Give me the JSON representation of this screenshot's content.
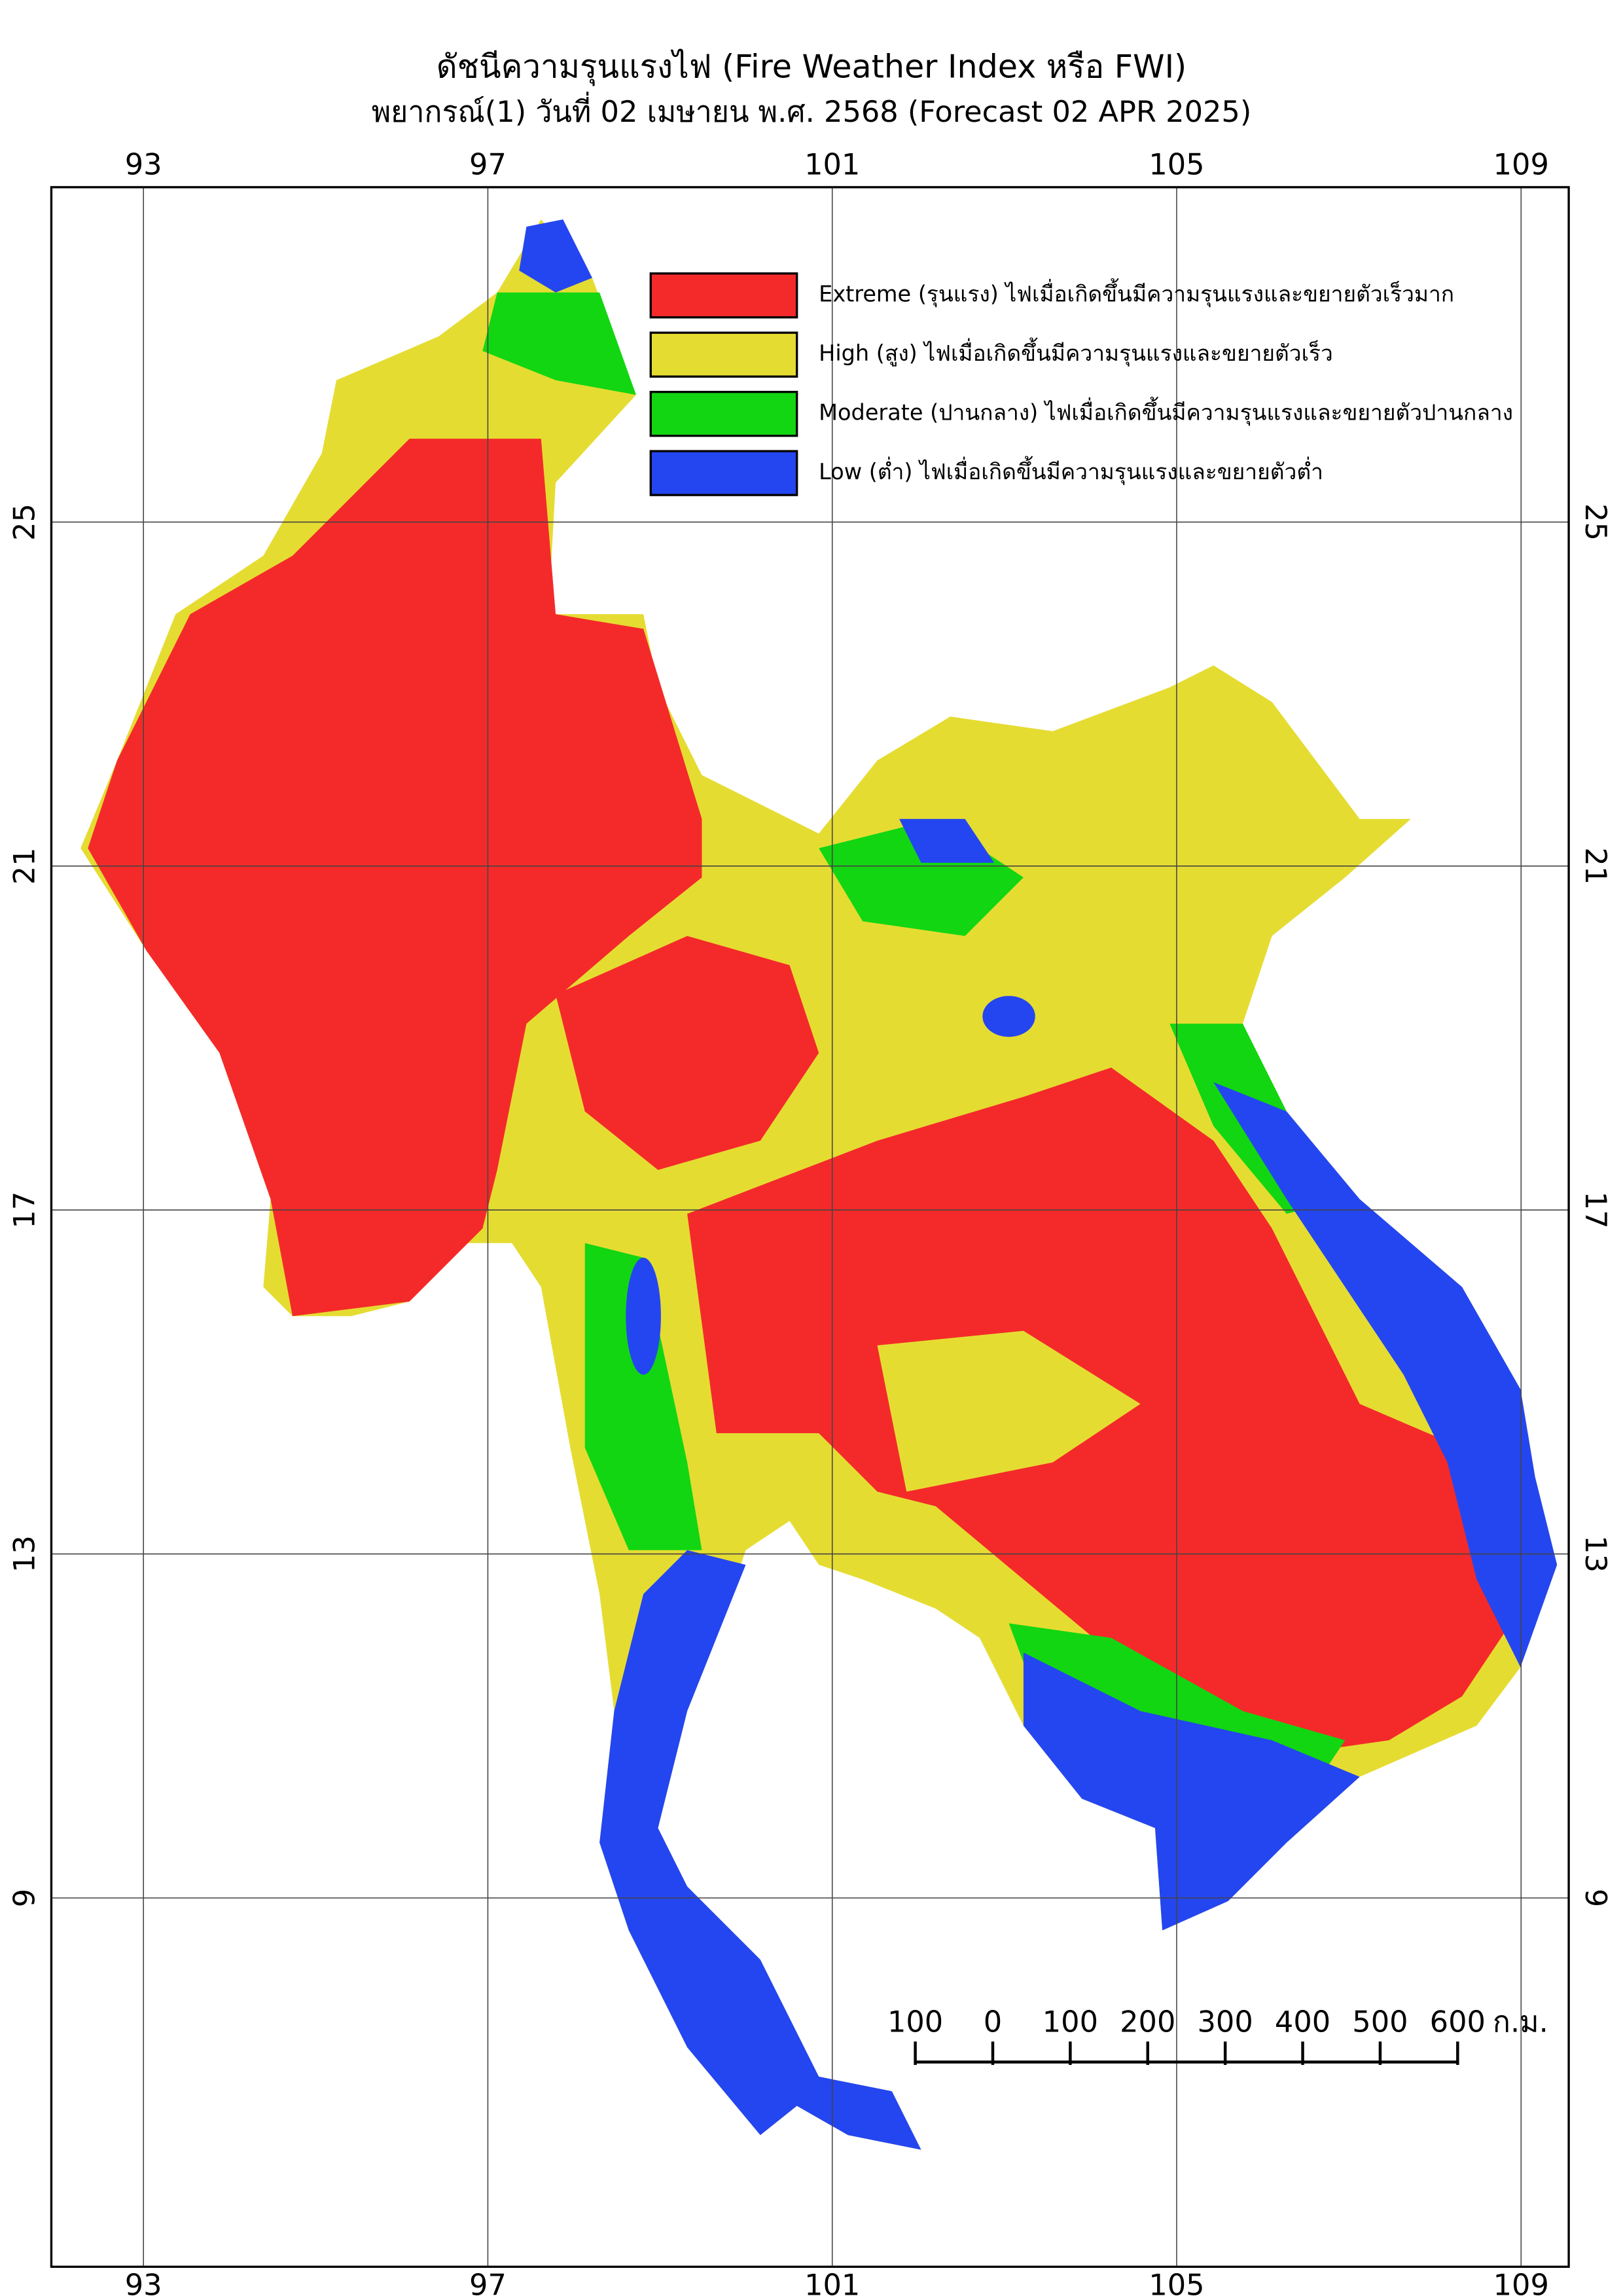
{
  "header": {
    "title": "ดัชนีความรุนแรงไฟ (Fire Weather Index หรือ FWI)",
    "subtitle": "พยากรณ์(1) วันที่ 02 เมษายน พ.ศ. 2568 (Forecast 02 APR 2025)"
  },
  "map": {
    "lon_ticks": [
      93,
      97,
      101,
      105,
      109
    ],
    "lat_ticks": [
      25,
      21,
      17,
      13,
      9
    ]
  },
  "legend": [
    {
      "color": "#f42a2a",
      "label": "Extreme (รุนแรง) ไฟเมื่อเกิดขึ้นมีความรุนแรงและขยายตัวเร็วมาก"
    },
    {
      "color": "#e5dc32",
      "label": "High (สูง) ไฟเมื่อเกิดขึ้นมีความรุนแรงและขยายตัวเร็ว"
    },
    {
      "color": "#12d612",
      "label": "Moderate (ปานกลาง) ไฟเมื่อเกิดขึ้นมีความรุนแรงและขยายตัวปานกลาง"
    },
    {
      "color": "#2446f0",
      "label": "Low (ต่ำ) ไฟเมื่อเกิดขึ้นมีความรุนแรงและขยายตัวต่ำ"
    }
  ],
  "scale_bar": {
    "labels": [
      "100",
      "0",
      "100",
      "200",
      "300",
      "400",
      "500",
      "600"
    ],
    "unit": "ก.ม."
  }
}
